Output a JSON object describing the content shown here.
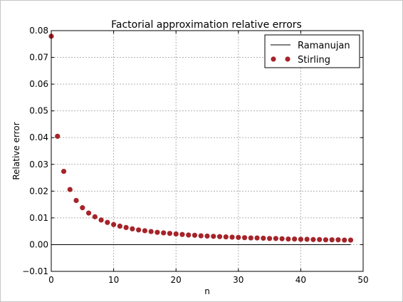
{
  "chart_data": {
    "type": "scatter",
    "title": "Factorial approximation relative errors",
    "xlabel": "n",
    "ylabel": "Relative error",
    "xlim": [
      0,
      50
    ],
    "ylim": [
      -0.01,
      0.08
    ],
    "xticks": [
      0,
      10,
      20,
      30,
      40,
      50
    ],
    "xtick_labels": [
      "0",
      "10",
      "20",
      "30",
      "40",
      "50"
    ],
    "yticks": [
      -0.01,
      0.0,
      0.01,
      0.02,
      0.03,
      0.04,
      0.05,
      0.06,
      0.07,
      0.08
    ],
    "ytick_labels": [
      "−0.01",
      "0.00",
      "0.01",
      "0.02",
      "0.03",
      "0.04",
      "0.05",
      "0.06",
      "0.07",
      "0.08"
    ],
    "grid": true,
    "legend_position": "top-right",
    "series": [
      {
        "name": "Ramanujan",
        "kind": "line",
        "color": "#000000",
        "x": [
          0,
          1,
          2,
          3,
          4,
          5,
          6,
          7,
          8,
          9,
          10,
          11,
          12,
          13,
          14,
          15,
          16,
          17,
          18,
          19,
          20,
          21,
          22,
          23,
          24,
          25,
          26,
          27,
          28,
          29,
          30,
          31,
          32,
          33,
          34,
          35,
          36,
          37,
          38,
          39,
          40,
          41,
          42,
          43,
          44,
          45,
          46,
          47,
          48
        ],
        "values": [
          0.0,
          0.0,
          0.0,
          0.0,
          0.0,
          0.0,
          0.0,
          0.0,
          0.0,
          0.0,
          0.0,
          0.0,
          0.0,
          0.0,
          0.0,
          0.0,
          0.0,
          0.0,
          0.0,
          0.0,
          0.0,
          0.0,
          0.0,
          0.0,
          0.0,
          0.0,
          0.0,
          0.0,
          0.0,
          0.0,
          0.0,
          0.0,
          0.0,
          0.0,
          0.0,
          0.0,
          0.0,
          0.0,
          0.0,
          0.0,
          0.0,
          0.0,
          0.0,
          0.0,
          0.0,
          0.0,
          0.0,
          0.0,
          0.0
        ]
      },
      {
        "name": "Stirling",
        "kind": "scatter",
        "color": "#a5242a",
        "x": [
          0,
          1,
          2,
          3,
          4,
          5,
          6,
          7,
          8,
          9,
          10,
          11,
          12,
          13,
          14,
          15,
          16,
          17,
          18,
          19,
          20,
          21,
          22,
          23,
          24,
          25,
          26,
          27,
          28,
          29,
          30,
          31,
          32,
          33,
          34,
          35,
          36,
          37,
          38,
          39,
          40,
          41,
          42,
          43,
          44,
          45,
          46,
          47,
          48
        ],
        "values": [
          0.0779,
          0.0405,
          0.0274,
          0.0206,
          0.0165,
          0.0138,
          0.0118,
          0.0104,
          0.0092,
          0.0083,
          0.0075,
          0.0069,
          0.0064,
          0.0059,
          0.0055,
          0.0052,
          0.0049,
          0.0046,
          0.0044,
          0.0042,
          0.004,
          0.0038,
          0.0036,
          0.0035,
          0.0033,
          0.0032,
          0.0031,
          0.003,
          0.0029,
          0.0028,
          0.0027,
          0.0026,
          0.0025,
          0.0025,
          0.0024,
          0.0023,
          0.0023,
          0.0022,
          0.0021,
          0.0021,
          0.002,
          0.002,
          0.0019,
          0.0019,
          0.0018,
          0.0018,
          0.0018,
          0.0017,
          0.0017
        ]
      }
    ]
  }
}
